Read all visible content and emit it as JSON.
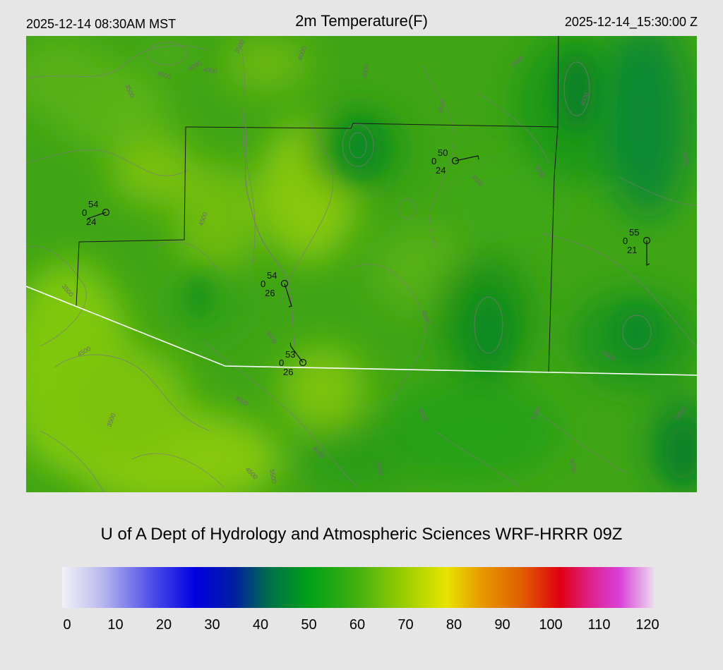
{
  "header": {
    "local_time": "2025-12-14 08:30AM MST",
    "title": "2m Temperature(F)",
    "utc_time": "2025-12-14_15:30:00 Z"
  },
  "credit": "U of A Dept of Hydrology and Atmospheric Sciences WRF-HRRR 09Z",
  "colorbar": {
    "ticks": [
      "0",
      "10",
      "20",
      "30",
      "40",
      "50",
      "60",
      "70",
      "80",
      "90",
      "100",
      "110",
      "120"
    ],
    "stops": [
      {
        "v": 0,
        "c": "#f2f2f8"
      },
      {
        "v": 8,
        "c": "#b9b9ee"
      },
      {
        "v": 18,
        "c": "#5050ea"
      },
      {
        "v": 27,
        "c": "#0000e0"
      },
      {
        "v": 35,
        "c": "#0020a0"
      },
      {
        "v": 42,
        "c": "#00704a"
      },
      {
        "v": 50,
        "c": "#00a018"
      },
      {
        "v": 60,
        "c": "#44b010"
      },
      {
        "v": 70,
        "c": "#a0d000"
      },
      {
        "v": 78,
        "c": "#e8e400"
      },
      {
        "v": 85,
        "c": "#e89a00"
      },
      {
        "v": 93,
        "c": "#e06000"
      },
      {
        "v": 101,
        "c": "#e00010"
      },
      {
        "v": 107,
        "c": "#e0208a"
      },
      {
        "v": 113,
        "c": "#d840d8"
      },
      {
        "v": 120,
        "c": "#eed8ee"
      }
    ]
  },
  "stations": [
    {
      "temp": "54",
      "cloud": "0",
      "dew": "24"
    },
    {
      "temp": "50",
      "cloud": "0",
      "dew": "24"
    },
    {
      "temp": "55",
      "cloud": "0",
      "dew": "21"
    },
    {
      "temp": "54",
      "cloud": "0",
      "dew": "26"
    },
    {
      "temp": "53",
      "cloud": "0",
      "dew": "26"
    }
  ],
  "contour_labels": [
    "3500",
    "4000",
    "4000",
    "3500",
    "4000",
    "4000",
    "3500",
    "3500",
    "4000",
    "4000",
    "4000",
    "4500",
    "3500",
    "4500",
    "3500",
    "4500",
    "4500",
    "4000",
    "3500",
    "5000",
    "5000",
    "5000",
    "5000",
    "4500",
    "4500",
    "5500",
    "4500",
    "5000",
    "5000",
    "4000"
  ]
}
